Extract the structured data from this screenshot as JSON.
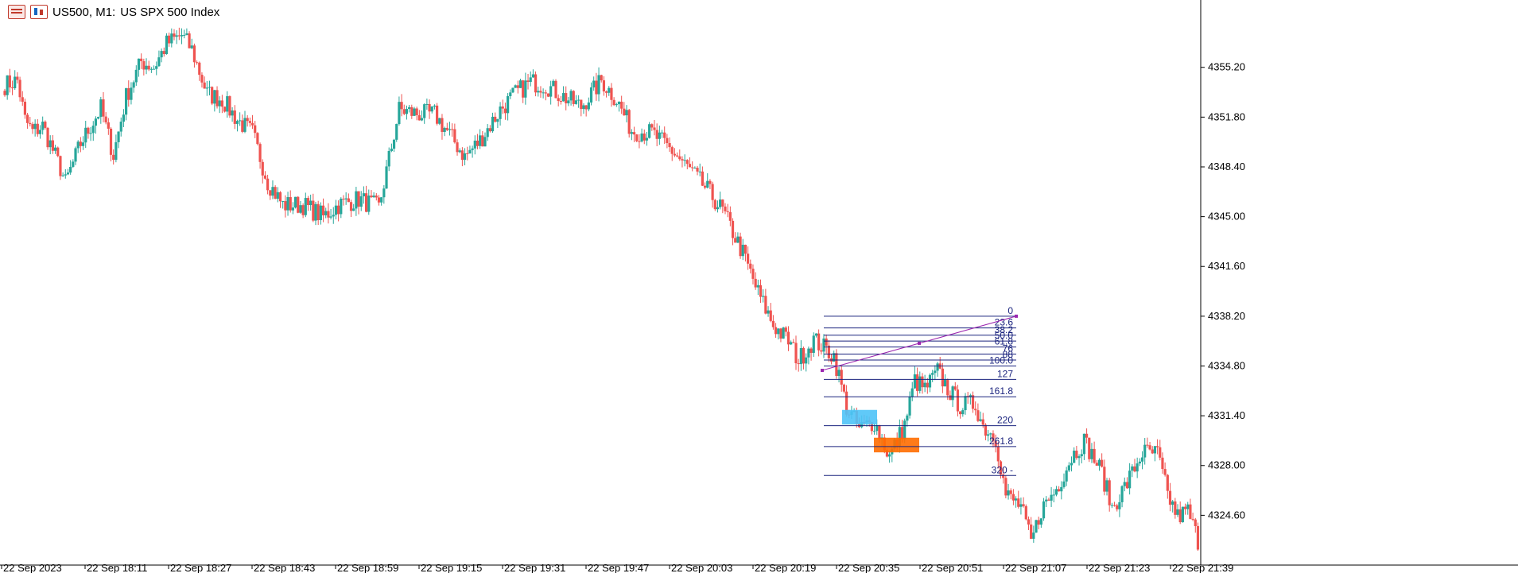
{
  "header": {
    "symbol_label": "US500, M1:",
    "description": "US SPX 500 Index"
  },
  "colors": {
    "bull": "#26a69a",
    "bear": "#ef5350",
    "fib": "#1a237e",
    "trend": "#9c27b0",
    "zone_blue": "#4fc3f7",
    "zone_orange": "#ff6d00"
  },
  "icons": [
    "table-icon",
    "chart-window-icon"
  ],
  "chart_data": {
    "type": "candlestick",
    "symbol": "US500",
    "timeframe": "M1",
    "ylim": [
      4321.2,
      4359.8
    ],
    "y_ticks": [
      "4355.20",
      "4351.80",
      "4348.40",
      "4345.00",
      "4341.60",
      "4338.20",
      "4334.80",
      "4331.40",
      "4328.00",
      "4324.60"
    ],
    "x_ticks": [
      "22 Sep 2023",
      "22 Sep 18:11",
      "22 Sep 18:27",
      "22 Sep 18:43",
      "22 Sep 18:59",
      "22 Sep 19:15",
      "22 Sep 19:31",
      "22 Sep 19:47",
      "22 Sep 20:03",
      "22 Sep 20:19",
      "22 Sep 20:35",
      "22 Sep 20:51",
      "22 Sep 21:07",
      "22 Sep 21:23",
      "22 Sep 21:39"
    ],
    "closes_anchor": [
      [
        0,
        4354.0
      ],
      [
        5,
        4354.3
      ],
      [
        8,
        4351.6
      ],
      [
        11,
        4350.8
      ],
      [
        15,
        4351.2
      ],
      [
        22,
        4348.3
      ],
      [
        24,
        4347.3
      ],
      [
        30,
        4350.0
      ],
      [
        38,
        4352.4
      ],
      [
        43,
        4349.2
      ],
      [
        48,
        4353.2
      ],
      [
        54,
        4355.6
      ],
      [
        59,
        4355.2
      ],
      [
        64,
        4356.8
      ],
      [
        70,
        4357.4
      ],
      [
        74,
        4356.4
      ],
      [
        80,
        4353.4
      ],
      [
        86,
        4353.0
      ],
      [
        92,
        4351.6
      ],
      [
        98,
        4350.7
      ],
      [
        104,
        4347.4
      ],
      [
        110,
        4345.8
      ],
      [
        118,
        4345.8
      ],
      [
        126,
        4345.0
      ],
      [
        132,
        4345.8
      ],
      [
        140,
        4346.2
      ],
      [
        148,
        4345.6
      ],
      [
        156,
        4352.3
      ],
      [
        164,
        4352.0
      ],
      [
        170,
        4352.0
      ],
      [
        176,
        4350.6
      ],
      [
        182,
        4349.1
      ],
      [
        188,
        4350.2
      ],
      [
        196,
        4352.3
      ],
      [
        202,
        4353.4
      ],
      [
        208,
        4354.2
      ],
      [
        214,
        4354.0
      ],
      [
        220,
        4353.3
      ],
      [
        228,
        4352.5
      ],
      [
        236,
        4354.3
      ],
      [
        242,
        4353.0
      ],
      [
        248,
        4350.9
      ],
      [
        256,
        4350.7
      ],
      [
        264,
        4349.5
      ],
      [
        272,
        4348.0
      ],
      [
        278,
        4346.8
      ],
      [
        284,
        4345.4
      ],
      [
        292,
        4342.5
      ],
      [
        298,
        4339.8
      ],
      [
        304,
        4337.6
      ],
      [
        310,
        4336.5
      ],
      [
        314,
        4335.2
      ],
      [
        320,
        4336.6
      ],
      [
        328,
        4335.5
      ],
      [
        333,
        4332.0
      ],
      [
        338,
        4330.5
      ],
      [
        344,
        4331.0
      ],
      [
        350,
        4328.6
      ],
      [
        356,
        4330.8
      ],
      [
        360,
        4333.8
      ],
      [
        364,
        4333.2
      ],
      [
        369,
        4334.4
      ],
      [
        374,
        4333.0
      ],
      [
        378,
        4332.1
      ],
      [
        384,
        4332.2
      ],
      [
        387,
        4330.7
      ],
      [
        392,
        4329.9
      ],
      [
        396,
        4326.0
      ],
      [
        402,
        4325.2
      ],
      [
        406,
        4322.7
      ],
      [
        410,
        4325.0
      ],
      [
        416,
        4326.4
      ],
      [
        422,
        4328.6
      ],
      [
        427,
        4329.7
      ],
      [
        434,
        4327.5
      ],
      [
        438,
        4325.1
      ],
      [
        444,
        4326.8
      ],
      [
        450,
        4328.9
      ],
      [
        456,
        4328.8
      ],
      [
        460,
        4326.0
      ],
      [
        464,
        4324.5
      ],
      [
        468,
        4324.9
      ],
      [
        472,
        4322.9
      ]
    ],
    "fibonacci": {
      "levels": [
        "0",
        "23.6",
        "38.2",
        "50.0",
        "61.8",
        "76",
        "88",
        "100.0",
        "127",
        "161.8",
        "220",
        "261.8",
        "320 -"
      ]
    }
  }
}
